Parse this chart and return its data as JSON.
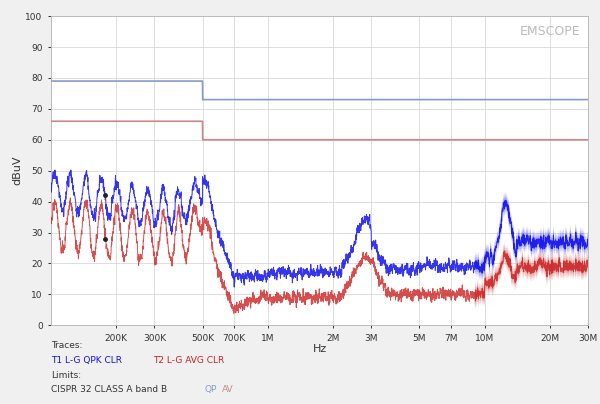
{
  "title": "EMSCOPE",
  "xlabel": "Hz",
  "ylabel": "dBuV",
  "ylim": [
    0,
    100
  ],
  "background_color": "#f0f0f0",
  "plot_bg_color": "#ffffff",
  "grid_color": "#d8d8d8",
  "blue_limit_color": "#8899cc",
  "red_limit_color": "#cc8888",
  "blue_trace_color": "#1111ee",
  "red_trace_color": "#cc2222",
  "traces_label": "Traces:",
  "t1_label": "T1 L-G QPK CLR",
  "t2_label": "T2 L-G AVG CLR",
  "limits_label": "Limits:",
  "cispr_label": "CISPR 32 CLASS A band B",
  "qp_label": "QP",
  "av_label": "AV",
  "emscope_color": "#aaaaaa",
  "annot_color": "#444444",
  "qp_limit_low": 79.0,
  "qp_limit_high": 73.0,
  "av_limit_low": 66.0,
  "av_limit_high": 60.0,
  "limit_break_freq": 500000
}
